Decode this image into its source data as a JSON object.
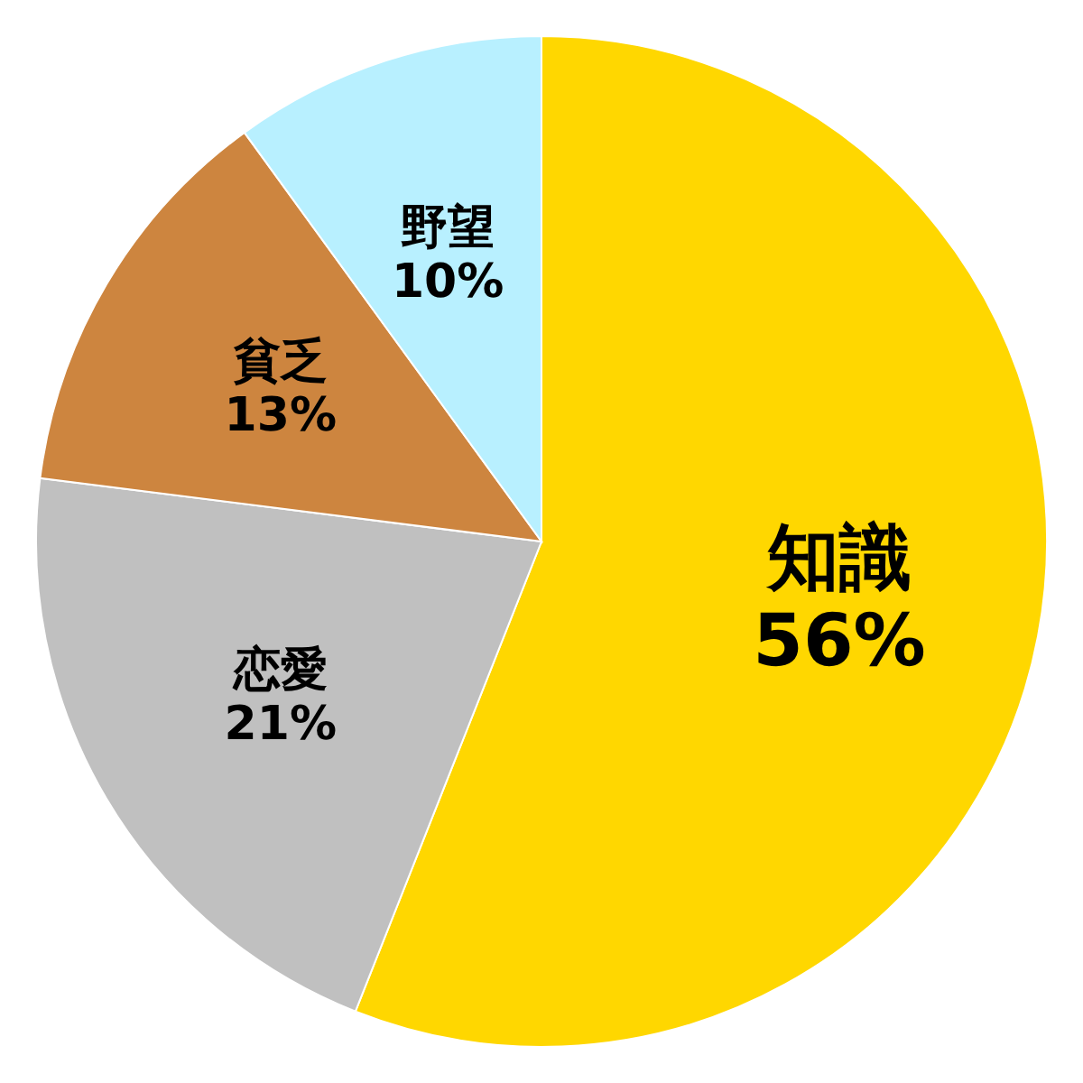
{
  "chart_data": {
    "type": "pie",
    "categories": [
      "知識",
      "恋愛",
      "貧乏",
      "野望"
    ],
    "values": [
      56,
      21,
      13,
      10
    ],
    "value_labels": [
      "56%",
      "21%",
      "13%",
      "10%"
    ],
    "colors": [
      "#ffd700",
      "#c0c0c0",
      "#cd853f",
      "#b8f0ff"
    ]
  }
}
